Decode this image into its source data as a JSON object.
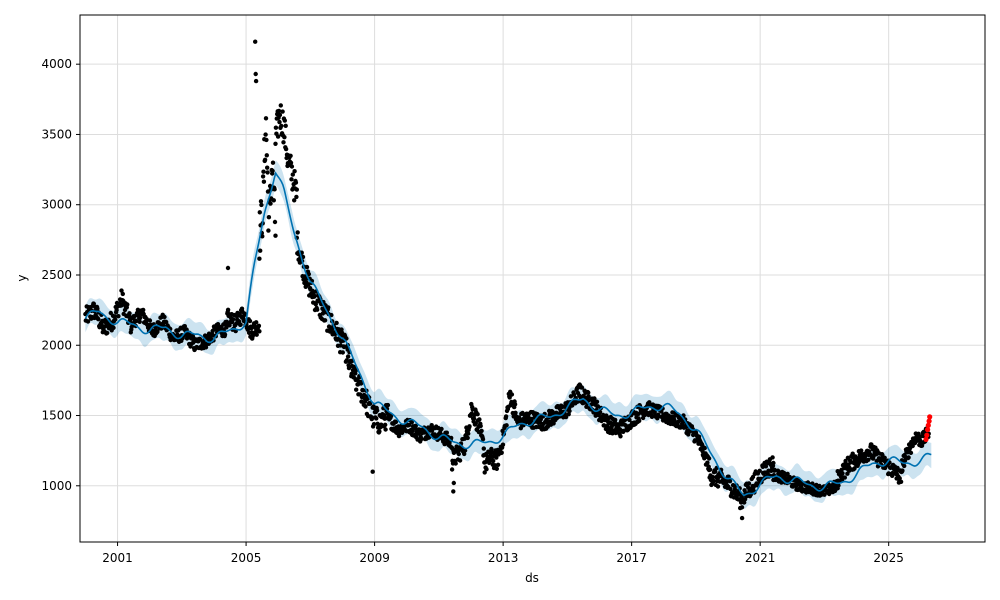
{
  "chart_data": {
    "type": "line",
    "title": "",
    "xlabel": "ds",
    "ylabel": "y",
    "x_ticks": [
      "2001",
      "2005",
      "2009",
      "2013",
      "2017",
      "2021",
      "2025"
    ],
    "y_ticks": [
      1000,
      1500,
      2000,
      2500,
      3000,
      3500,
      4000
    ],
    "xlim": [
      "1999-11-01",
      "2028-01-01"
    ],
    "ylim": [
      600,
      4350
    ],
    "grid": true,
    "legend": "none",
    "colors": {
      "observed": "#000000",
      "forecast": "#0072B2",
      "interval": "#0072B2",
      "recent": "#ff0000",
      "grid": "#dddddd"
    },
    "forecast_line": {
      "x": [
        "2000-01-01",
        "2000-06-01",
        "2001-01-01",
        "2001-07-01",
        "2002-01-01",
        "2002-07-01",
        "2003-01-01",
        "2003-07-01",
        "2004-01-01",
        "2004-07-01",
        "2005-01-01",
        "2005-04-01",
        "2005-08-01",
        "2005-12-01",
        "2006-03-01",
        "2006-07-01",
        "2007-01-01",
        "2007-07-01",
        "2008-01-01",
        "2008-07-01",
        "2009-01-01",
        "2009-07-01",
        "2010-01-01",
        "2010-07-01",
        "2011-01-01",
        "2011-07-01",
        "2012-01-01",
        "2012-07-01",
        "2013-01-01",
        "2013-07-01",
        "2014-01-01",
        "2014-07-01",
        "2015-01-01",
        "2015-07-01",
        "2016-01-01",
        "2016-07-01",
        "2017-01-01",
        "2017-07-01",
        "2018-01-01",
        "2018-07-01",
        "2019-01-01",
        "2019-07-01",
        "2020-01-01",
        "2020-07-01",
        "2021-01-01",
        "2021-07-01",
        "2022-01-01",
        "2022-07-01",
        "2023-01-01",
        "2023-07-01",
        "2024-01-01",
        "2024-07-01",
        "2025-01-01",
        "2025-07-01",
        "2026-01-01",
        "2026-05-01"
      ],
      "y": [
        2190,
        2240,
        2160,
        2150,
        2100,
        2130,
        2060,
        2080,
        2040,
        2110,
        2160,
        2550,
        2950,
        3250,
        3100,
        2800,
        2450,
        2250,
        2050,
        1820,
        1580,
        1520,
        1450,
        1420,
        1340,
        1310,
        1290,
        1310,
        1350,
        1440,
        1470,
        1490,
        1560,
        1620,
        1540,
        1500,
        1520,
        1560,
        1570,
        1510,
        1400,
        1220,
        1050,
        930,
        1010,
        1070,
        1040,
        1010,
        990,
        1020,
        1080,
        1160,
        1180,
        1160,
        1180,
        1210
      ]
    },
    "interval_half_width": 90,
    "observed_segments": [
      {
        "start": "2000-01-01",
        "end": "2001-06-01",
        "levels": [
          2200,
          2250,
          2120,
          2180,
          2330,
          2150
        ],
        "spread": 70
      },
      {
        "start": "2001-06-01",
        "end": "2004-06-01",
        "levels": [
          2150,
          2230,
          2100,
          2170,
          2050,
          2090,
          2000,
          2030,
          2100,
          2120
        ],
        "spread": 50
      },
      {
        "start": "2004-06-01",
        "end": "2005-06-01",
        "levels": [
          2200,
          2150,
          2230,
          2100,
          2150
        ],
        "spread": 60
      },
      {
        "start": "2005-06-01",
        "end": "2005-12-01",
        "levels": [
          2780,
          2950,
          3600,
          2850,
          3300,
          2820
        ],
        "spread": 180
      },
      {
        "start": "2005-12-01",
        "end": "2006-08-01",
        "levels": [
          3450,
          3650,
          3550,
          3300,
          3200,
          3050
        ],
        "spread": 120
      },
      {
        "start": "2006-08-01",
        "end": "2008-03-01",
        "levels": [
          2750,
          2500,
          2350,
          2250,
          2150,
          2050,
          1950
        ],
        "spread": 90
      },
      {
        "start": "2008-03-01",
        "end": "2009-06-01",
        "levels": [
          1900,
          1750,
          1650,
          1500,
          1450,
          1500
        ],
        "spread": 90
      },
      {
        "start": "2009-06-01",
        "end": "2011-06-01",
        "levels": [
          1480,
          1400,
          1430,
          1360,
          1400,
          1360,
          1300
        ],
        "spread": 50
      },
      {
        "start": "2011-06-01",
        "end": "2012-06-01",
        "levels": [
          1180,
          1230,
          1300,
          1550,
          1450,
          1250
        ],
        "spread": 70
      },
      {
        "start": "2012-06-01",
        "end": "2013-06-01",
        "levels": [
          1150,
          1200,
          1180,
          1350,
          1650,
          1500
        ],
        "spread": 70
      },
      {
        "start": "2013-06-01",
        "end": "2015-06-01",
        "levels": [
          1450,
          1480,
          1450,
          1500,
          1550,
          1680
        ],
        "spread": 60
      },
      {
        "start": "2015-06-01",
        "end": "2017-06-01",
        "levels": [
          1650,
          1580,
          1450,
          1400,
          1480,
          1550
        ],
        "spread": 60
      },
      {
        "start": "2017-06-01",
        "end": "2019-06-01",
        "levels": [
          1560,
          1520,
          1480,
          1450,
          1350,
          1150
        ],
        "spread": 50
      },
      {
        "start": "2019-06-01",
        "end": "2021-06-01",
        "levels": [
          1080,
          1050,
          1000,
          900,
          1000,
          1100,
          1150
        ],
        "spread": 70
      },
      {
        "start": "2021-06-01",
        "end": "2023-06-01",
        "levels": [
          1080,
          1050,
          1000,
          980,
          960,
          1000
        ],
        "spread": 40
      },
      {
        "start": "2023-06-01",
        "end": "2025-06-01",
        "levels": [
          1050,
          1150,
          1200,
          1250,
          1180,
          1120,
          1050
        ],
        "spread": 60
      },
      {
        "start": "2025-06-01",
        "end": "2026-04-01",
        "levels": [
          1150,
          1250,
          1350,
          1320,
          1380
        ],
        "spread": 50
      }
    ],
    "observed_outliers": [
      {
        "x": "2005-04-15",
        "y": 4160
      },
      {
        "x": "2005-04-20",
        "y": 3930
      },
      {
        "x": "2005-04-25",
        "y": 3880
      },
      {
        "x": "2004-06-10",
        "y": 2550
      },
      {
        "x": "2008-12-10",
        "y": 1100
      },
      {
        "x": "2011-06-15",
        "y": 960
      },
      {
        "x": "2011-06-20",
        "y": 1020
      },
      {
        "x": "2020-06-10",
        "y": 770
      }
    ],
    "recent_points": [
      {
        "x": "2026-03-01",
        "y": 1330
      },
      {
        "x": "2026-03-10",
        "y": 1360
      },
      {
        "x": "2026-03-20",
        "y": 1400
      },
      {
        "x": "2026-03-28",
        "y": 1430
      },
      {
        "x": "2026-04-05",
        "y": 1460
      },
      {
        "x": "2026-04-12",
        "y": 1490
      }
    ]
  }
}
